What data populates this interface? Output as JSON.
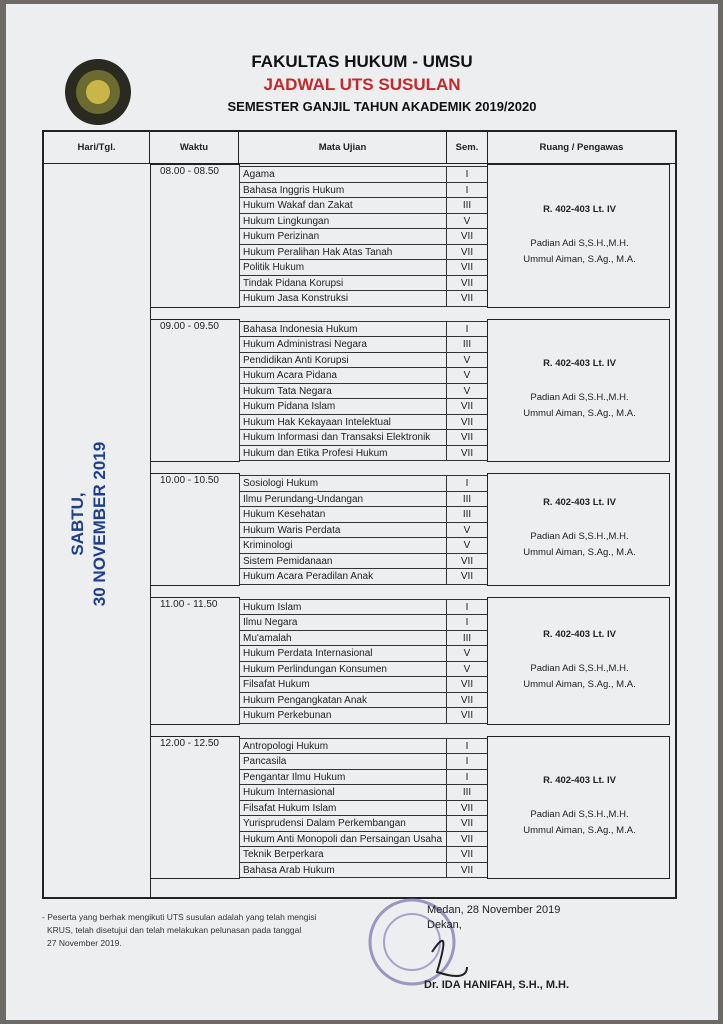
{
  "header": {
    "line1": "FAKULTAS HUKUM - UMSU",
    "line2": "JADWAL UTS SUSULAN",
    "line3": "SEMESTER GANJIL TAHUN AKADEMIK 2019/2020"
  },
  "table": {
    "columns": [
      "Hari/Tgl.",
      "Waktu",
      "Mata Ujian",
      "Sem.",
      "Ruang / Pengawas"
    ],
    "day": [
      "SABTU,",
      "30 NOVEMBER 2019"
    ],
    "sessions": [
      {
        "time": "08.00 - 08.50",
        "room": "R. 402-403 Lt. IV",
        "supervisors": [
          "Padian Adi S,S.H.,M.H.",
          "Ummul Aiman, S.Ag., M.A."
        ],
        "subjects": [
          {
            "name": "Agama",
            "sem": "I"
          },
          {
            "name": "Bahasa Inggris Hukum",
            "sem": "I"
          },
          {
            "name": "Hukum Wakaf dan Zakat",
            "sem": "III"
          },
          {
            "name": "Hukum Lingkungan",
            "sem": "V"
          },
          {
            "name": "Hukum Perizinan",
            "sem": "VII"
          },
          {
            "name": "Hukum Peralihan Hak Atas Tanah",
            "sem": "VII"
          },
          {
            "name": "Politik Hukum",
            "sem": "VII"
          },
          {
            "name": "Tindak Pidana Korupsi",
            "sem": "VII"
          },
          {
            "name": "Hukum Jasa Konstruksi",
            "sem": "VII"
          }
        ]
      },
      {
        "time": "09.00 - 09.50",
        "room": "R. 402-403 Lt. IV",
        "supervisors": [
          "Padian Adi S,S.H.,M.H.",
          "Ummul Aiman, S.Ag., M.A."
        ],
        "subjects": [
          {
            "name": "Bahasa Indonesia Hukum",
            "sem": "I"
          },
          {
            "name": "Hukum Administrasi Negara",
            "sem": "III"
          },
          {
            "name": "Pendidikan Anti Korupsi",
            "sem": "V"
          },
          {
            "name": "Hukum Acara Pidana",
            "sem": "V"
          },
          {
            "name": "Hukum Tata Negara",
            "sem": "V"
          },
          {
            "name": "Hukum Pidana Islam",
            "sem": "VII"
          },
          {
            "name": "Hukum Hak Kekayaan Intelektual",
            "sem": "VII"
          },
          {
            "name": "Hukum Informasi dan Transaksi Elektronik",
            "sem": "VII"
          },
          {
            "name": "Hukum dan Etika Profesi Hukum",
            "sem": "VII"
          }
        ]
      },
      {
        "time": "10.00 - 10.50",
        "room": "R. 402-403 Lt. IV",
        "supervisors": [
          "Padian Adi S,S.H.,M.H.",
          "Ummul Aiman, S.Ag., M.A."
        ],
        "subjects": [
          {
            "name": "Sosiologi Hukum",
            "sem": "I"
          },
          {
            "name": "Ilmu Perundang-Undangan",
            "sem": "III"
          },
          {
            "name": "Hukum Kesehatan",
            "sem": "III"
          },
          {
            "name": "Hukum Waris Perdata",
            "sem": "V"
          },
          {
            "name": "Kriminologi",
            "sem": "V"
          },
          {
            "name": "Sistem Pemidanaan",
            "sem": "VII"
          },
          {
            "name": "Hukum Acara Peradilan Anak",
            "sem": "VII"
          }
        ]
      },
      {
        "time": "11.00 - 11.50",
        "room": "R. 402-403 Lt. IV",
        "supervisors": [
          "Padian Adi S,S.H.,M.H.",
          "Ummul Aiman, S.Ag., M.A."
        ],
        "subjects": [
          {
            "name": "Hukum Islam",
            "sem": "I"
          },
          {
            "name": "Ilmu Negara",
            "sem": "I"
          },
          {
            "name": "Mu'amalah",
            "sem": "III"
          },
          {
            "name": "Hukum Perdata Internasional",
            "sem": "V"
          },
          {
            "name": "Hukum Perlindungan Konsumen",
            "sem": "V"
          },
          {
            "name": "Filsafat Hukum",
            "sem": "VII"
          },
          {
            "name": "Hukum Pengangkatan Anak",
            "sem": "VII"
          },
          {
            "name": "Hukum Perkebunan",
            "sem": "VII"
          }
        ]
      },
      {
        "time": "12.00 - 12.50",
        "room": "R. 402-403 Lt. IV",
        "supervisors": [
          "Padian Adi S,S.H.,M.H.",
          "Ummul Aiman, S.Ag., M.A."
        ],
        "subjects": [
          {
            "name": "Antropologi Hukum",
            "sem": "I"
          },
          {
            "name": "Pancasila",
            "sem": "I"
          },
          {
            "name": "Pengantar Ilmu Hukum",
            "sem": "I"
          },
          {
            "name": "Hukum Internasional",
            "sem": "III"
          },
          {
            "name": "Filsafat Hukum Islam",
            "sem": "VII"
          },
          {
            "name": "Yurisprudensi Dalam Perkembangan",
            "sem": "VII"
          },
          {
            "name": "Hukum Anti Monopoli dan Persaingan Usaha",
            "sem": "VII"
          },
          {
            "name": "Teknik Berperkara",
            "sem": "VII"
          },
          {
            "name": "Bahasa Arab Hukum",
            "sem": "VII"
          }
        ]
      }
    ]
  },
  "note": [
    "- Peserta yang berhak mengikuti UTS susulan adalah yang telah mengisi",
    "KRUS, telah disetujui dan telah melakukan pelunasan pada tanggal",
    "27 November 2019."
  ],
  "signature": {
    "place_date": "Medan, 28 November 2019",
    "role": "Dekan,",
    "name": "Dr. IDA HANIFAH, S.H., M.H."
  }
}
